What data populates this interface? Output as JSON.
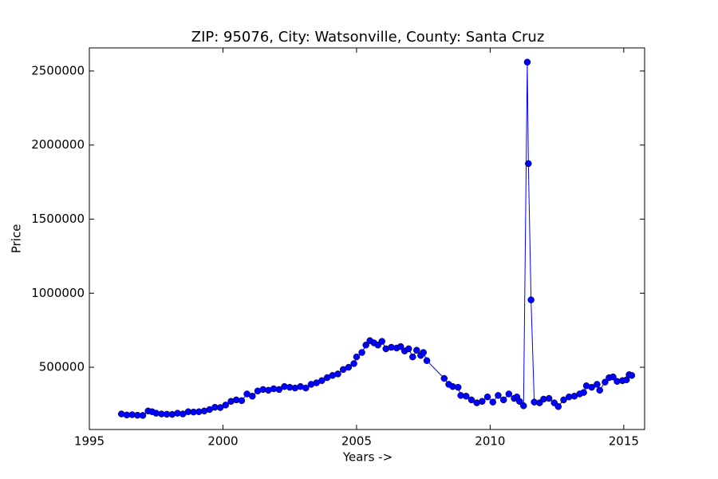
{
  "chart_data": {
    "type": "line",
    "title": "ZIP: 95076, City: Watsonville, County: Santa Cruz",
    "xlabel": "Years ->",
    "ylabel": "Price",
    "x": [
      1996.2,
      1996.4,
      1996.6,
      1996.8,
      1997.0,
      1997.2,
      1997.35,
      1997.5,
      1997.7,
      1997.9,
      1998.1,
      1998.3,
      1998.5,
      1998.7,
      1998.9,
      1999.1,
      1999.3,
      1999.5,
      1999.7,
      1999.9,
      2000.1,
      2000.3,
      2000.5,
      2000.7,
      2000.9,
      2001.1,
      2001.3,
      2001.5,
      2001.7,
      2001.9,
      2002.1,
      2002.3,
      2002.5,
      2002.7,
      2002.9,
      2003.1,
      2003.3,
      2003.5,
      2003.7,
      2003.9,
      2004.1,
      2004.3,
      2004.5,
      2004.7,
      2004.9,
      2005.0,
      2005.2,
      2005.35,
      2005.5,
      2005.65,
      2005.8,
      2005.95,
      2006.1,
      2006.3,
      2006.5,
      2006.65,
      2006.8,
      2006.95,
      2007.1,
      2007.25,
      2007.4,
      2007.5,
      2007.63,
      2008.28,
      2008.45,
      2008.6,
      2008.8,
      2008.9,
      2009.1,
      2009.3,
      2009.5,
      2009.7,
      2009.9,
      2010.1,
      2010.3,
      2010.5,
      2010.7,
      2010.9,
      2011.0,
      2011.1,
      2011.25,
      2011.39,
      2011.43,
      2011.53,
      2011.65,
      2011.85,
      2012.0,
      2012.2,
      2012.4,
      2012.55,
      2012.75,
      2012.95,
      2013.15,
      2013.35,
      2013.5,
      2013.6,
      2013.8,
      2014.0,
      2014.1,
      2014.3,
      2014.45,
      2014.6,
      2014.75,
      2014.95,
      2015.1,
      2015.2,
      2015.3
    ],
    "series": [
      {
        "name": "Price",
        "color": "#0000ff",
        "values": [
          185000,
          178000,
          180000,
          176000,
          175000,
          205000,
          200000,
          190000,
          185000,
          183000,
          182000,
          190000,
          185000,
          200000,
          198000,
          200000,
          205000,
          215000,
          230000,
          228000,
          245000,
          270000,
          280000,
          275000,
          320000,
          305000,
          340000,
          350000,
          345000,
          355000,
          350000,
          370000,
          365000,
          360000,
          370000,
          360000,
          385000,
          395000,
          410000,
          430000,
          445000,
          455000,
          485000,
          500000,
          525000,
          570000,
          600000,
          650000,
          680000,
          665000,
          650000,
          675000,
          625000,
          635000,
          630000,
          640000,
          610000,
          625000,
          570000,
          615000,
          580000,
          600000,
          545000,
          425000,
          385000,
          370000,
          365000,
          310000,
          305000,
          280000,
          260000,
          270000,
          300000,
          265000,
          310000,
          280000,
          320000,
          290000,
          300000,
          270000,
          240000,
          2560000,
          1875000,
          955000,
          265000,
          260000,
          285000,
          290000,
          260000,
          235000,
          280000,
          300000,
          305000,
          320000,
          330000,
          375000,
          365000,
          385000,
          345000,
          400000,
          430000,
          435000,
          405000,
          410000,
          415000,
          450000,
          445000
        ]
      }
    ],
    "xlim": [
      1995,
      2015.78
    ],
    "ylim": [
      80000,
      2656000
    ],
    "xticks": [
      1995,
      2000,
      2005,
      2010,
      2015
    ],
    "yticks": [
      500000,
      1000000,
      1500000,
      2000000,
      2500000
    ]
  }
}
